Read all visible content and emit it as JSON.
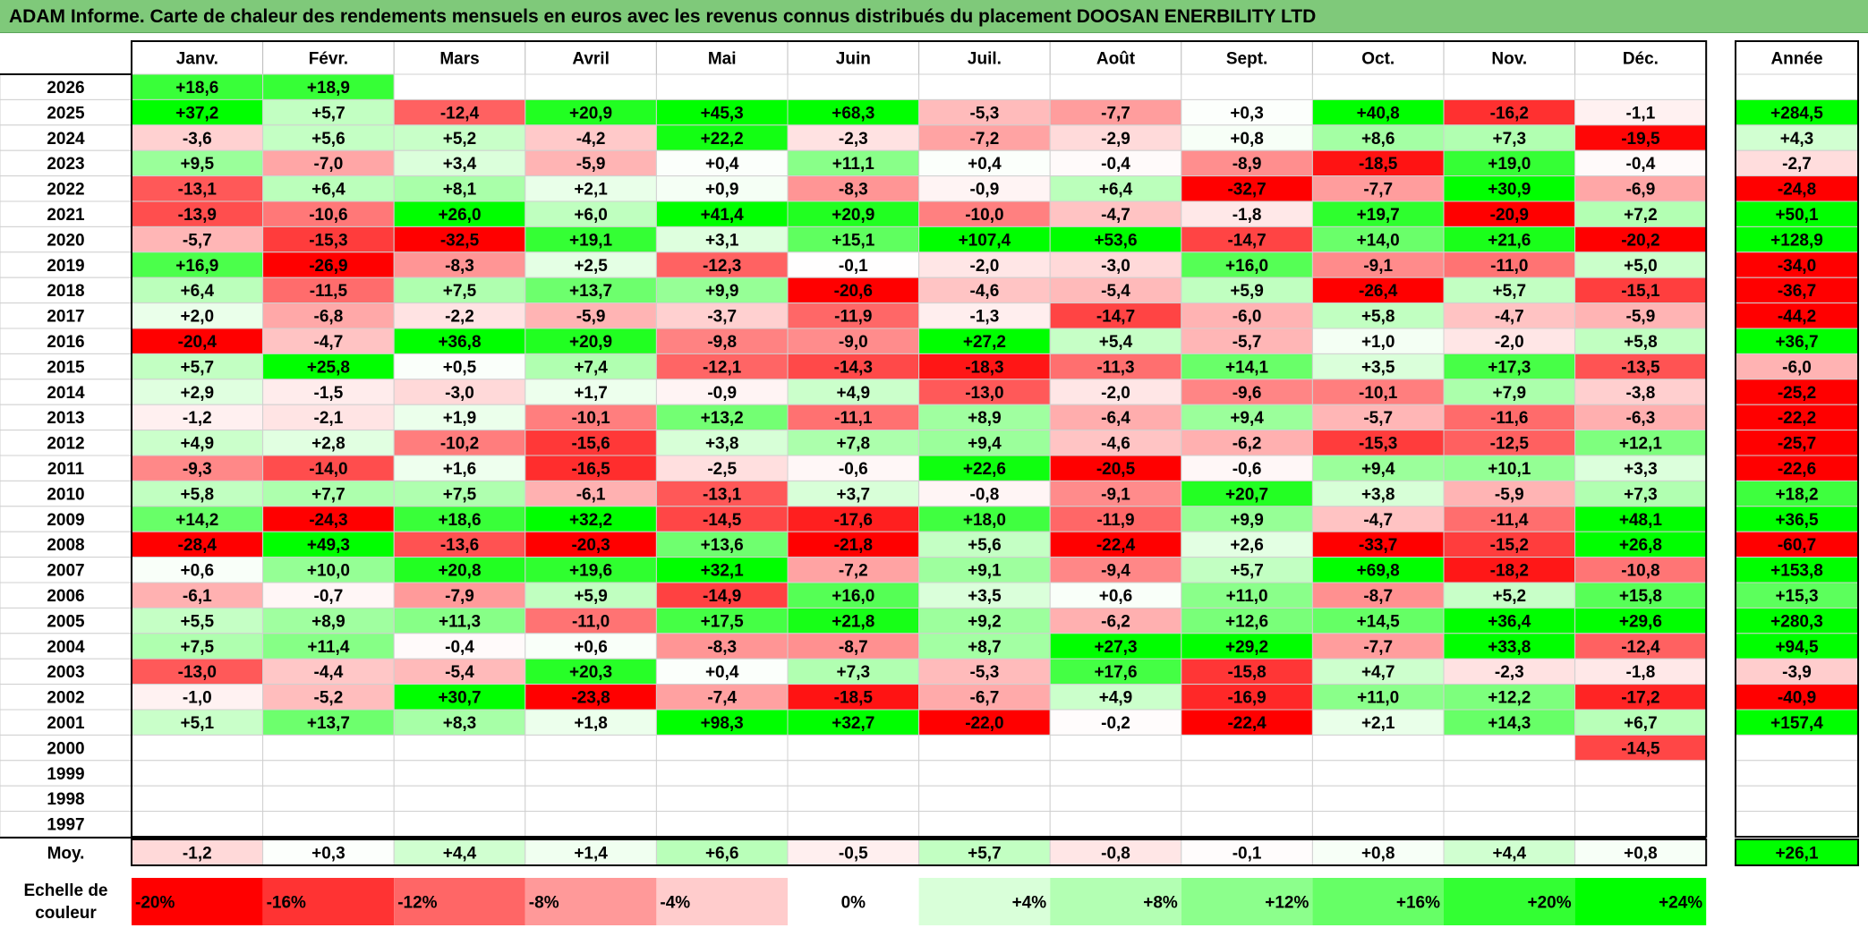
{
  "title": "ADAM Informe. Carte de chaleur des rendements mensuels en euros avec les revenus connus distribués du placement DOOSAN ENERBILITY LTD",
  "chart_data": {
    "type": "heatmap",
    "months": [
      "Janv.",
      "Févr.",
      "Mars",
      "Avril",
      "Mai",
      "Juin",
      "Juil.",
      "Août",
      "Sept.",
      "Oct.",
      "Nov.",
      "Déc."
    ],
    "year_header": "Année",
    "avg_label": "Moy.",
    "scale_label": "Echelle de couleur",
    "rows": [
      {
        "year": "2026",
        "values": [
          "+18,6",
          "+18,9",
          "",
          "",
          "",
          "",
          "",
          "",
          "",
          "",
          "",
          ""
        ],
        "annual": ""
      },
      {
        "year": "2025",
        "values": [
          "+37,2",
          "+5,7",
          "-12,4",
          "+20,9",
          "+45,3",
          "+68,3",
          "-5,3",
          "-7,7",
          "+0,3",
          "+40,8",
          "-16,2",
          "-1,1"
        ],
        "annual": "+284,5"
      },
      {
        "year": "2024",
        "values": [
          "-3,6",
          "+5,6",
          "+5,2",
          "-4,2",
          "+22,2",
          "-2,3",
          "-7,2",
          "-2,9",
          "+0,8",
          "+8,6",
          "+7,3",
          "-19,5"
        ],
        "annual": "+4,3"
      },
      {
        "year": "2023",
        "values": [
          "+9,5",
          "-7,0",
          "+3,4",
          "-5,9",
          "+0,4",
          "+11,1",
          "+0,4",
          "-0,4",
          "-8,9",
          "-18,5",
          "+19,0",
          "-0,4"
        ],
        "annual": "-2,7"
      },
      {
        "year": "2022",
        "values": [
          "-13,1",
          "+6,4",
          "+8,1",
          "+2,1",
          "+0,9",
          "-8,3",
          "-0,9",
          "+6,4",
          "-32,7",
          "-7,7",
          "+30,9",
          "-6,9"
        ],
        "annual": "-24,8"
      },
      {
        "year": "2021",
        "values": [
          "-13,9",
          "-10,6",
          "+26,0",
          "+6,0",
          "+41,4",
          "+20,9",
          "-10,0",
          "-4,7",
          "-1,8",
          "+19,7",
          "-20,9",
          "+7,2"
        ],
        "annual": "+50,1"
      },
      {
        "year": "2020",
        "values": [
          "-5,7",
          "-15,3",
          "-32,5",
          "+19,1",
          "+3,1",
          "+15,1",
          "+107,4",
          "+53,6",
          "-14,7",
          "+14,0",
          "+21,6",
          "-20,2"
        ],
        "annual": "+128,9"
      },
      {
        "year": "2019",
        "values": [
          "+16,9",
          "-26,9",
          "-8,3",
          "+2,5",
          "-12,3",
          "-0,1",
          "-2,0",
          "-3,0",
          "+16,0",
          "-9,1",
          "-11,0",
          "+5,0"
        ],
        "annual": "-34,0"
      },
      {
        "year": "2018",
        "values": [
          "+6,4",
          "-11,5",
          "+7,5",
          "+13,7",
          "+9,9",
          "-20,6",
          "-4,6",
          "-5,4",
          "+5,9",
          "-26,4",
          "+5,7",
          "-15,1"
        ],
        "annual": "-36,7"
      },
      {
        "year": "2017",
        "values": [
          "+2,0",
          "-6,8",
          "-2,2",
          "-5,9",
          "-3,7",
          "-11,9",
          "-1,3",
          "-14,7",
          "-6,0",
          "+5,8",
          "-4,7",
          "-5,9"
        ],
        "annual": "-44,2"
      },
      {
        "year": "2016",
        "values": [
          "-20,4",
          "-4,7",
          "+36,8",
          "+20,9",
          "-9,8",
          "-9,0",
          "+27,2",
          "+5,4",
          "-5,7",
          "+1,0",
          "-2,0",
          "+5,8"
        ],
        "annual": "+36,7"
      },
      {
        "year": "2015",
        "values": [
          "+5,7",
          "+25,8",
          "+0,5",
          "+7,4",
          "-12,1",
          "-14,3",
          "-18,3",
          "-11,3",
          "+14,1",
          "+3,5",
          "+17,3",
          "-13,5"
        ],
        "annual": "-6,0"
      },
      {
        "year": "2014",
        "values": [
          "+2,9",
          "-1,5",
          "-3,0",
          "+1,7",
          "-0,9",
          "+4,9",
          "-13,0",
          "-2,0",
          "-9,6",
          "-10,1",
          "+7,9",
          "-3,8"
        ],
        "annual": "-25,2"
      },
      {
        "year": "2013",
        "values": [
          "-1,2",
          "-2,1",
          "+1,9",
          "-10,1",
          "+13,2",
          "-11,1",
          "+8,9",
          "-6,4",
          "+9,4",
          "-5,7",
          "-11,6",
          "-6,3"
        ],
        "annual": "-22,2"
      },
      {
        "year": "2012",
        "values": [
          "+4,9",
          "+2,8",
          "-10,2",
          "-15,6",
          "+3,8",
          "+7,8",
          "+9,4",
          "-4,6",
          "-6,2",
          "-15,3",
          "-12,5",
          "+12,1"
        ],
        "annual": "-25,7"
      },
      {
        "year": "2011",
        "values": [
          "-9,3",
          "-14,0",
          "+1,6",
          "-16,5",
          "-2,5",
          "-0,6",
          "+22,6",
          "-20,5",
          "-0,6",
          "+9,4",
          "+10,1",
          "+3,3"
        ],
        "annual": "-22,6"
      },
      {
        "year": "2010",
        "values": [
          "+5,8",
          "+7,7",
          "+7,5",
          "-6,1",
          "-13,1",
          "+3,7",
          "-0,8",
          "-9,1",
          "+20,7",
          "+3,8",
          "-5,9",
          "+7,3"
        ],
        "annual": "+18,2"
      },
      {
        "year": "2009",
        "values": [
          "+14,2",
          "-24,3",
          "+18,6",
          "+32,2",
          "-14,5",
          "-17,6",
          "+18,0",
          "-11,9",
          "+9,9",
          "-4,7",
          "-11,4",
          "+48,1"
        ],
        "annual": "+36,5"
      },
      {
        "year": "2008",
        "values": [
          "-28,4",
          "+49,3",
          "-13,6",
          "-20,3",
          "+13,6",
          "-21,8",
          "+5,6",
          "-22,4",
          "+2,6",
          "-33,7",
          "-15,2",
          "+26,8"
        ],
        "annual": "-60,7"
      },
      {
        "year": "2007",
        "values": [
          "+0,6",
          "+10,0",
          "+20,8",
          "+19,6",
          "+32,1",
          "-7,2",
          "+9,1",
          "-9,4",
          "+5,7",
          "+69,8",
          "-18,2",
          "-10,8"
        ],
        "annual": "+153,8"
      },
      {
        "year": "2006",
        "values": [
          "-6,1",
          "-0,7",
          "-7,9",
          "+5,9",
          "-14,9",
          "+16,0",
          "+3,5",
          "+0,6",
          "+11,0",
          "-8,7",
          "+5,2",
          "+15,8"
        ],
        "annual": "+15,3"
      },
      {
        "year": "2005",
        "values": [
          "+5,5",
          "+8,9",
          "+11,3",
          "-11,0",
          "+17,5",
          "+21,8",
          "+9,2",
          "-6,2",
          "+12,6",
          "+14,5",
          "+36,4",
          "+29,6"
        ],
        "annual": "+280,3"
      },
      {
        "year": "2004",
        "values": [
          "+7,5",
          "+11,4",
          "-0,4",
          "+0,6",
          "-8,3",
          "-8,7",
          "+8,7",
          "+27,3",
          "+29,2",
          "-7,7",
          "+33,8",
          "-12,4"
        ],
        "annual": "+94,5"
      },
      {
        "year": "2003",
        "values": [
          "-13,0",
          "-4,4",
          "-5,4",
          "+20,3",
          "+0,4",
          "+7,3",
          "-5,3",
          "+17,6",
          "-15,8",
          "+4,7",
          "-2,3",
          "-1,8"
        ],
        "annual": "-3,9"
      },
      {
        "year": "2002",
        "values": [
          "-1,0",
          "-5,2",
          "+30,7",
          "-23,8",
          "-7,4",
          "-18,5",
          "-6,7",
          "+4,9",
          "-16,9",
          "+11,0",
          "+12,2",
          "-17,2"
        ],
        "annual": "-40,9"
      },
      {
        "year": "2001",
        "values": [
          "+5,1",
          "+13,7",
          "+8,3",
          "+1,8",
          "+98,3",
          "+32,7",
          "-22,0",
          "-0,2",
          "-22,4",
          "+2,1",
          "+14,3",
          "+6,7"
        ],
        "annual": "+157,4"
      },
      {
        "year": "2000",
        "values": [
          "",
          "",
          "",
          "",
          "",
          "",
          "",
          "",
          "",
          "",
          "",
          "-14,5"
        ],
        "annual": ""
      },
      {
        "year": "1999",
        "values": [
          "",
          "",
          "",
          "",
          "",
          "",
          "",
          "",
          "",
          "",
          "",
          ""
        ],
        "annual": ""
      },
      {
        "year": "1998",
        "values": [
          "",
          "",
          "",
          "",
          "",
          "",
          "",
          "",
          "",
          "",
          "",
          ""
        ],
        "annual": ""
      },
      {
        "year": "1997",
        "values": [
          "",
          "",
          "",
          "",
          "",
          "",
          "",
          "",
          "",
          "",
          "",
          ""
        ],
        "annual": ""
      }
    ],
    "averages": [
      "-1,2",
      "+0,3",
      "+4,4",
      "+1,4",
      "+6,6",
      "-0,5",
      "+5,7",
      "-0,8",
      "-0,1",
      "+0,8",
      "+4,4",
      "+0,8"
    ],
    "average_annual": "+26,1",
    "scale": [
      "-20%",
      "-16%",
      "-12%",
      "-8%",
      "-4%",
      "0%",
      "+4%",
      "+8%",
      "+12%",
      "+16%",
      "+20%",
      "+24%"
    ]
  }
}
